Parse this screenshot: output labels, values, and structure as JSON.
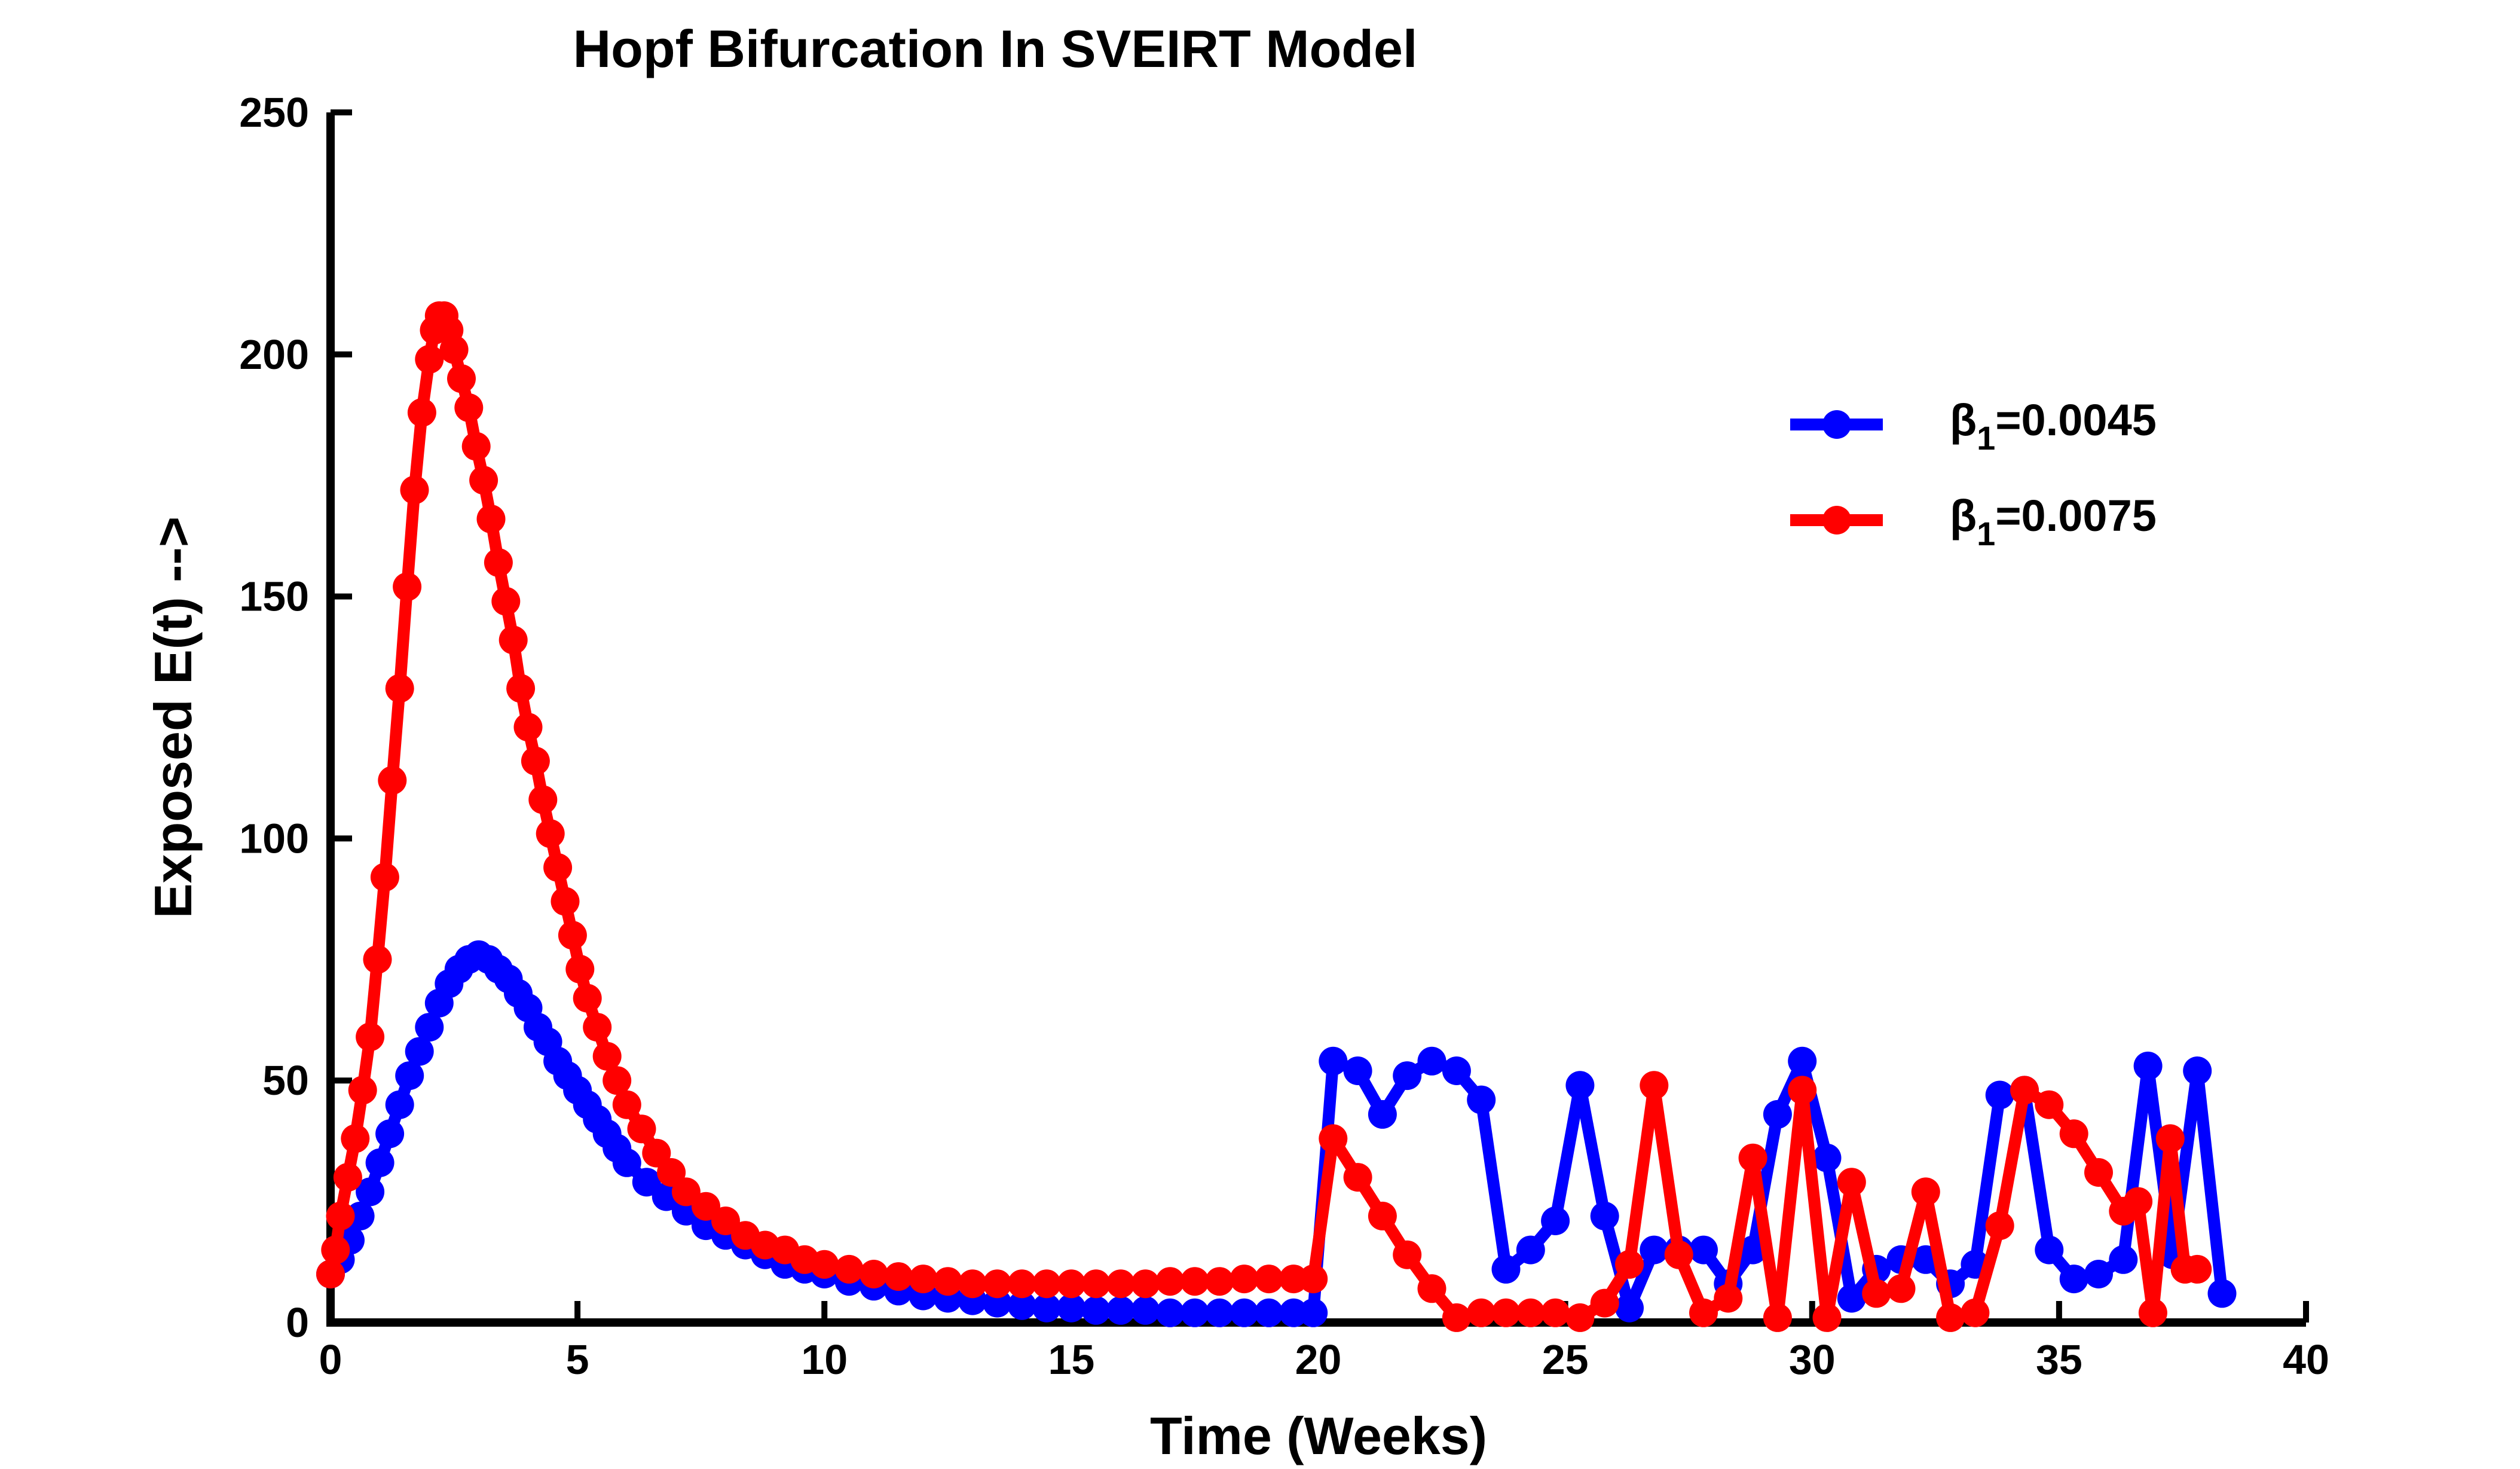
{
  "chart_data": {
    "type": "line",
    "title": "Hopf Bifurcation In SVEIRT Model",
    "xlabel": "Time (Weeks)",
    "ylabel": "Exposed E(t) -->",
    "xlim": [
      0,
      40
    ],
    "ylim": [
      0,
      250
    ],
    "xticks": [
      0,
      5,
      10,
      15,
      20,
      25,
      30,
      35,
      40
    ],
    "yticks": [
      0,
      50,
      100,
      150,
      200,
      250
    ],
    "grid": false,
    "legend_position": "top-right",
    "series": [
      {
        "name": "β1=0.0045",
        "label_main": "β",
        "label_sub": "1",
        "label_value": "=0.0045",
        "color": "#0000FF",
        "points": [
          [
            0,
            10
          ],
          [
            0.2,
            13
          ],
          [
            0.4,
            17
          ],
          [
            0.6,
            22
          ],
          [
            0.8,
            27
          ],
          [
            1.0,
            33
          ],
          [
            1.2,
            39
          ],
          [
            1.4,
            45
          ],
          [
            1.6,
            51
          ],
          [
            1.8,
            56
          ],
          [
            2.0,
            61
          ],
          [
            2.2,
            66
          ],
          [
            2.4,
            70
          ],
          [
            2.6,
            73
          ],
          [
            2.8,
            75
          ],
          [
            3.0,
            76
          ],
          [
            3.2,
            75
          ],
          [
            3.4,
            73
          ],
          [
            3.6,
            71
          ],
          [
            3.8,
            68
          ],
          [
            4.0,
            65
          ],
          [
            4.2,
            61
          ],
          [
            4.4,
            58
          ],
          [
            4.6,
            54
          ],
          [
            4.8,
            51
          ],
          [
            5.0,
            48
          ],
          [
            5.2,
            45
          ],
          [
            5.4,
            42
          ],
          [
            5.6,
            39
          ],
          [
            5.8,
            36
          ],
          [
            6.0,
            33
          ],
          [
            6.4,
            29
          ],
          [
            6.8,
            26
          ],
          [
            7.2,
            23
          ],
          [
            7.6,
            20
          ],
          [
            8.0,
            18
          ],
          [
            8.4,
            16
          ],
          [
            8.8,
            14
          ],
          [
            9.2,
            12
          ],
          [
            9.6,
            11
          ],
          [
            10.0,
            10
          ],
          [
            10.5,
            8.5
          ],
          [
            11,
            7.5
          ],
          [
            11.5,
            6.5
          ],
          [
            12,
            5.5
          ],
          [
            12.5,
            5
          ],
          [
            13,
            4.5
          ],
          [
            13.5,
            4
          ],
          [
            14,
            3.5
          ],
          [
            14.5,
            3
          ],
          [
            15,
            3
          ],
          [
            15.5,
            2.5
          ],
          [
            16,
            2.5
          ],
          [
            16.5,
            2.5
          ],
          [
            17,
            2
          ],
          [
            17.5,
            2
          ],
          [
            18,
            2
          ],
          [
            18.5,
            2
          ],
          [
            19,
            2
          ],
          [
            19.5,
            2
          ],
          [
            19.9,
            2
          ],
          [
            20.3,
            54
          ],
          [
            20.8,
            52
          ],
          [
            21.3,
            43
          ],
          [
            21.8,
            51
          ],
          [
            22.3,
            54
          ],
          [
            22.8,
            52
          ],
          [
            23.3,
            46
          ],
          [
            23.8,
            11
          ],
          [
            24.3,
            15
          ],
          [
            24.8,
            21
          ],
          [
            25.3,
            49
          ],
          [
            25.8,
            22
          ],
          [
            26.3,
            3
          ],
          [
            26.8,
            15
          ],
          [
            27.3,
            15
          ],
          [
            27.8,
            15
          ],
          [
            28.3,
            8
          ],
          [
            28.8,
            15
          ],
          [
            29.3,
            43
          ],
          [
            29.8,
            54
          ],
          [
            30.3,
            34
          ],
          [
            30.8,
            5
          ],
          [
            31.3,
            11
          ],
          [
            31.8,
            13
          ],
          [
            32.3,
            13
          ],
          [
            32.8,
            8
          ],
          [
            33.3,
            12
          ],
          [
            33.8,
            47
          ],
          [
            34.3,
            48
          ],
          [
            34.8,
            15
          ],
          [
            35.3,
            9
          ],
          [
            35.8,
            10
          ],
          [
            36.3,
            13
          ],
          [
            36.8,
            53
          ],
          [
            37.3,
            14
          ],
          [
            37.8,
            52
          ],
          [
            38.3,
            6
          ]
        ]
      },
      {
        "name": "β1=0.0075",
        "label_main": "β",
        "label_sub": "1",
        "label_value": "=0.0075",
        "color": "#FF0000",
        "points": [
          [
            0,
            10
          ],
          [
            0.1,
            15
          ],
          [
            0.2,
            22
          ],
          [
            0.35,
            30
          ],
          [
            0.5,
            38
          ],
          [
            0.65,
            48
          ],
          [
            0.8,
            59
          ],
          [
            0.95,
            75
          ],
          [
            1.1,
            92
          ],
          [
            1.25,
            112
          ],
          [
            1.4,
            131
          ],
          [
            1.55,
            152
          ],
          [
            1.7,
            172
          ],
          [
            1.85,
            188
          ],
          [
            2.0,
            199
          ],
          [
            2.1,
            205
          ],
          [
            2.2,
            208
          ],
          [
            2.3,
            208
          ],
          [
            2.4,
            205
          ],
          [
            2.5,
            201
          ],
          [
            2.65,
            195
          ],
          [
            2.8,
            189
          ],
          [
            2.95,
            181
          ],
          [
            3.1,
            174
          ],
          [
            3.25,
            166
          ],
          [
            3.4,
            157
          ],
          [
            3.55,
            149
          ],
          [
            3.7,
            141
          ],
          [
            3.85,
            131
          ],
          [
            4.0,
            123
          ],
          [
            4.15,
            116
          ],
          [
            4.3,
            108
          ],
          [
            4.45,
            101
          ],
          [
            4.6,
            94
          ],
          [
            4.75,
            87
          ],
          [
            4.9,
            80
          ],
          [
            5.05,
            73
          ],
          [
            5.2,
            67
          ],
          [
            5.4,
            61
          ],
          [
            5.6,
            55
          ],
          [
            5.8,
            50
          ],
          [
            6.0,
            45
          ],
          [
            6.3,
            40
          ],
          [
            6.6,
            35
          ],
          [
            6.9,
            31
          ],
          [
            7.2,
            27
          ],
          [
            7.6,
            24
          ],
          [
            8.0,
            21
          ],
          [
            8.4,
            18
          ],
          [
            8.8,
            16
          ],
          [
            9.2,
            15
          ],
          [
            9.6,
            13
          ],
          [
            10.0,
            12
          ],
          [
            10.5,
            11
          ],
          [
            11,
            10
          ],
          [
            11.5,
            9.5
          ],
          [
            12,
            9
          ],
          [
            12.5,
            8.5
          ],
          [
            13,
            8
          ],
          [
            13.5,
            8
          ],
          [
            14,
            8
          ],
          [
            14.5,
            8
          ],
          [
            15,
            8
          ],
          [
            15.5,
            8
          ],
          [
            16,
            8
          ],
          [
            16.5,
            8
          ],
          [
            17,
            8.5
          ],
          [
            17.5,
            8.5
          ],
          [
            18,
            8.5
          ],
          [
            18.5,
            9
          ],
          [
            19,
            9
          ],
          [
            19.5,
            9
          ],
          [
            19.9,
            9
          ],
          [
            20.3,
            38
          ],
          [
            20.8,
            30
          ],
          [
            21.3,
            22
          ],
          [
            21.8,
            14
          ],
          [
            22.3,
            7
          ],
          [
            22.8,
            1
          ],
          [
            23.3,
            2
          ],
          [
            23.8,
            2
          ],
          [
            24.3,
            2
          ],
          [
            24.8,
            2
          ],
          [
            25.3,
            1
          ],
          [
            25.8,
            4
          ],
          [
            26.3,
            12
          ],
          [
            26.8,
            49
          ],
          [
            27.3,
            14
          ],
          [
            27.8,
            2
          ],
          [
            28.3,
            5
          ],
          [
            28.8,
            34
          ],
          [
            29.3,
            1
          ],
          [
            29.8,
            48
          ],
          [
            30.3,
            1
          ],
          [
            30.8,
            29
          ],
          [
            31.3,
            6
          ],
          [
            31.8,
            7
          ],
          [
            32.3,
            27
          ],
          [
            32.8,
            1
          ],
          [
            33.3,
            2
          ],
          [
            33.8,
            20
          ],
          [
            34.3,
            48
          ],
          [
            34.8,
            45
          ],
          [
            35.3,
            39
          ],
          [
            35.8,
            31
          ],
          [
            36.3,
            23
          ],
          [
            36.6,
            25
          ],
          [
            36.9,
            2
          ],
          [
            37.25,
            38
          ],
          [
            37.55,
            11
          ],
          [
            37.8,
            11
          ]
        ]
      }
    ]
  }
}
